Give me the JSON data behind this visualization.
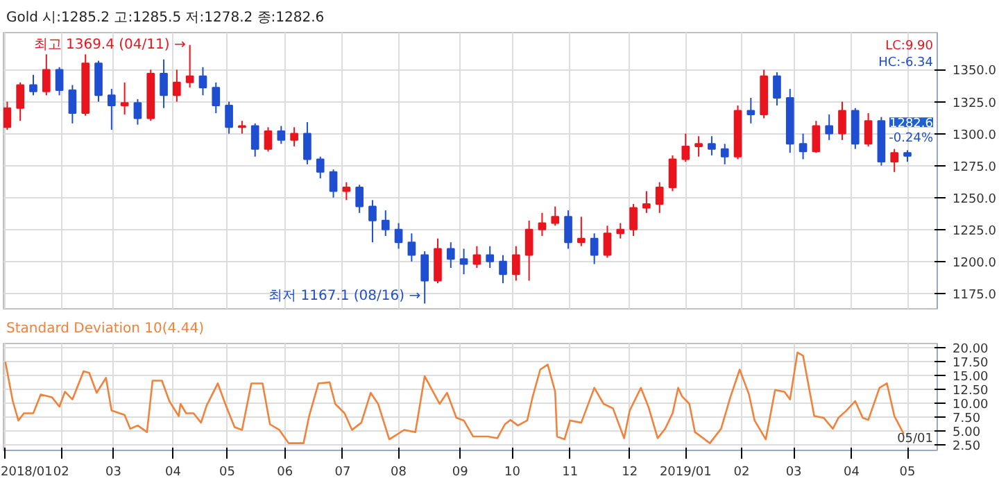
{
  "chart_data": [
    {
      "type": "candlestick",
      "title": "Gold 시:1285.2 고:1285.5 저:1278.2 종:1282.6",
      "x": [
        "2018-01-03",
        "2018-01-10",
        "2018-01-17",
        "2018-01-24",
        "2018-01-31",
        "2018-02-07",
        "2018-02-14",
        "2018-02-21",
        "2018-02-28",
        "2018-03-07",
        "2018-03-14",
        "2018-03-21",
        "2018-03-28",
        "2018-04-04",
        "2018-04-11",
        "2018-04-18",
        "2018-04-25",
        "2018-05-02",
        "2018-05-09",
        "2018-05-16",
        "2018-05-23",
        "2018-05-30",
        "2018-06-06",
        "2018-06-13",
        "2018-06-20",
        "2018-06-27",
        "2018-07-04",
        "2018-07-11",
        "2018-07-18",
        "2018-07-25",
        "2018-08-01",
        "2018-08-08",
        "2018-08-15",
        "2018-08-22",
        "2018-08-29",
        "2018-09-05",
        "2018-09-12",
        "2018-09-19",
        "2018-09-26",
        "2018-10-03",
        "2018-10-10",
        "2018-10-17",
        "2018-10-24",
        "2018-10-31",
        "2018-11-07",
        "2018-11-14",
        "2018-11-21",
        "2018-11-28",
        "2018-12-05",
        "2018-12-12",
        "2018-12-19",
        "2018-12-26",
        "2019-01-02",
        "2019-01-09",
        "2019-01-16",
        "2019-01-23",
        "2019-01-30",
        "2019-02-06",
        "2019-02-13",
        "2019-02-20",
        "2019-02-27",
        "2019-03-06",
        "2019-03-13",
        "2019-03-20",
        "2019-03-27",
        "2019-04-03",
        "2019-04-10",
        "2019-04-17",
        "2019-04-24",
        "2019-05-01"
      ],
      "ohlc": [
        [
          1305,
          1325,
          1303,
          1320
        ],
        [
          1320,
          1340,
          1310,
          1338
        ],
        [
          1338,
          1346,
          1330,
          1333
        ],
        [
          1333,
          1362,
          1330,
          1350
        ],
        [
          1350,
          1352,
          1330,
          1334
        ],
        [
          1334,
          1338,
          1308,
          1316
        ],
        [
          1316,
          1362,
          1314,
          1355
        ],
        [
          1355,
          1357,
          1325,
          1330
        ],
        [
          1330,
          1335,
          1303,
          1322
        ],
        [
          1322,
          1340,
          1315,
          1324
        ],
        [
          1324,
          1327,
          1307,
          1312
        ],
        [
          1312,
          1350,
          1310,
          1347
        ],
        [
          1347,
          1358,
          1320,
          1330
        ],
        [
          1330,
          1350,
          1325,
          1340
        ],
        [
          1340,
          1369.4,
          1336,
          1345
        ],
        [
          1345,
          1352,
          1330,
          1336
        ],
        [
          1336,
          1340,
          1316,
          1322
        ],
        [
          1322,
          1325,
          1300,
          1305
        ],
        [
          1305,
          1310,
          1300,
          1306
        ],
        [
          1306,
          1308,
          1282,
          1288
        ],
        [
          1288,
          1305,
          1286,
          1302
        ],
        [
          1302,
          1306,
          1292,
          1295
        ],
        [
          1295,
          1305,
          1290,
          1300
        ],
        [
          1300,
          1309,
          1276,
          1280
        ],
        [
          1280,
          1282,
          1265,
          1270
        ],
        [
          1270,
          1272,
          1250,
          1255
        ],
        [
          1255,
          1262,
          1248,
          1258
        ],
        [
          1258,
          1260,
          1238,
          1243
        ],
        [
          1243,
          1248,
          1215,
          1232
        ],
        [
          1232,
          1240,
          1220,
          1225
        ],
        [
          1225,
          1230,
          1210,
          1215
        ],
        [
          1215,
          1222,
          1200,
          1205
        ],
        [
          1205,
          1208,
          1167.1,
          1185
        ],
        [
          1185,
          1218,
          1183,
          1210
        ],
        [
          1210,
          1215,
          1195,
          1202
        ],
        [
          1202,
          1210,
          1190,
          1198
        ],
        [
          1198,
          1212,
          1195,
          1205
        ],
        [
          1205,
          1212,
          1195,
          1200
        ],
        [
          1200,
          1205,
          1183,
          1190
        ],
        [
          1190,
          1212,
          1185,
          1205
        ],
        [
          1205,
          1232,
          1185,
          1225
        ],
        [
          1225,
          1238,
          1220,
          1230
        ],
        [
          1230,
          1243,
          1228,
          1235
        ],
        [
          1235,
          1240,
          1210,
          1215
        ],
        [
          1215,
          1235,
          1212,
          1218
        ],
        [
          1218,
          1222,
          1198,
          1205
        ],
        [
          1205,
          1228,
          1203,
          1222
        ],
        [
          1222,
          1230,
          1218,
          1225
        ],
        [
          1225,
          1245,
          1220,
          1242
        ],
        [
          1242,
          1255,
          1238,
          1245
        ],
        [
          1245,
          1262,
          1238,
          1258
        ],
        [
          1258,
          1283,
          1255,
          1280
        ],
        [
          1280,
          1300,
          1278,
          1290
        ],
        [
          1290,
          1298,
          1282,
          1292
        ],
        [
          1292,
          1298,
          1283,
          1288
        ],
        [
          1288,
          1292,
          1276,
          1282
        ],
        [
          1282,
          1322,
          1280,
          1318
        ],
        [
          1318,
          1328,
          1308,
          1315
        ],
        [
          1315,
          1350,
          1312,
          1345
        ],
        [
          1345,
          1348,
          1322,
          1328
        ],
        [
          1328,
          1335,
          1285,
          1292
        ],
        [
          1292,
          1300,
          1280,
          1286
        ],
        [
          1286,
          1310,
          1285,
          1306
        ],
        [
          1306,
          1315,
          1295,
          1300
        ],
        [
          1300,
          1325,
          1295,
          1318
        ],
        [
          1318,
          1320,
          1288,
          1292
        ],
        [
          1292,
          1316,
          1290,
          1310
        ],
        [
          1310,
          1313,
          1275,
          1278
        ],
        [
          1278,
          1288,
          1270,
          1285
        ],
        [
          1285,
          1287,
          1278,
          1282.6
        ]
      ],
      "xlim": [
        "2018-01-01",
        "2019-05-17"
      ],
      "xticks": [
        {
          "value": "2018-01-02",
          "label": null
        },
        {
          "value": "2018-02-01",
          "label": null
        },
        {
          "value": "2018-03-01",
          "label": null
        },
        {
          "value": "2018-04-02",
          "label": null
        },
        {
          "value": "2018-05-01",
          "label": null
        },
        {
          "value": "2018-06-01",
          "label": null
        },
        {
          "value": "2018-07-02",
          "label": null
        },
        {
          "value": "2018-08-01",
          "label": null
        },
        {
          "value": "2018-09-03",
          "label": null
        },
        {
          "value": "2018-10-01",
          "label": null
        },
        {
          "value": "2018-11-01",
          "label": null
        },
        {
          "value": "2018-12-03",
          "label": null
        },
        {
          "value": "2019-01-02",
          "label": null
        },
        {
          "value": "2019-02-01",
          "label": null
        },
        {
          "value": "2019-03-01",
          "label": null
        },
        {
          "value": "2019-04-01",
          "label": null
        },
        {
          "value": "2019-05-01",
          "label": null
        }
      ],
      "ylim": [
        1163,
        1379
      ],
      "yticks": [
        {
          "value": 1175,
          "label": "1175.0"
        },
        {
          "value": 1200,
          "label": "1200.0"
        },
        {
          "value": 1225,
          "label": "1225.0"
        },
        {
          "value": 1250,
          "label": "1250.0"
        },
        {
          "value": 1275,
          "label": "1275.0"
        },
        {
          "value": 1300,
          "label": "1300.0"
        },
        {
          "value": 1325,
          "label": "1325.0"
        },
        {
          "value": 1350,
          "label": "1350.0"
        }
      ],
      "tick_labels": "y",
      "grid": true,
      "annotations": [
        "LC:9.90",
        "HC:-6.34",
        "1282.6",
        "-0.24%",
        {
          "text": "최고 1369.4 (04/11) →",
          "x": "2018-04-11",
          "y": 1369.4
        },
        {
          "text": "최저 1167.1 (08/16) →",
          "x": "2018-08-15",
          "y": 1167.1
        }
      ]
    },
    {
      "type": "line",
      "title": "Standard Deviation 10(4.44)",
      "series": [
        {
          "color": "#f0823c",
          "x": [
            "2018-01-02",
            "2018-01-06",
            "2018-01-09",
            "2018-01-12",
            "2018-01-17",
            "2018-01-21",
            "2018-01-27",
            "2018-01-31",
            "2018-02-03",
            "2018-02-07",
            "2018-02-13",
            "2018-02-16",
            "2018-02-20",
            "2018-02-25",
            "2018-02-28",
            "2018-03-07",
            "2018-03-10",
            "2018-03-14",
            "2018-03-19",
            "2018-03-22",
            "2018-03-27",
            "2018-03-31",
            "2018-04-05",
            "2018-04-06",
            "2018-04-09",
            "2018-04-13",
            "2018-04-17",
            "2018-04-20",
            "2018-04-26",
            "2018-04-30",
            "2018-05-05",
            "2018-05-09",
            "2018-05-14",
            "2018-05-20",
            "2018-05-24",
            "2018-05-29",
            "2018-06-03",
            "2018-06-11",
            "2018-06-14",
            "2018-06-19",
            "2018-06-25",
            "2018-06-28",
            "2018-07-03",
            "2018-07-07",
            "2018-07-12",
            "2018-07-17",
            "2018-07-21",
            "2018-07-27",
            "2018-08-04",
            "2018-08-10",
            "2018-08-15",
            "2018-08-23",
            "2018-08-27",
            "2018-09-01",
            "2018-09-05",
            "2018-09-10",
            "2018-09-18",
            "2018-09-23",
            "2018-09-27",
            "2018-09-30",
            "2018-10-04",
            "2018-10-09",
            "2018-10-12",
            "2018-10-16",
            "2018-10-20",
            "2018-10-24",
            "2018-10-25",
            "2018-10-29",
            "2018-11-01",
            "2018-11-07",
            "2018-11-14",
            "2018-11-19",
            "2018-11-24",
            "2018-11-30",
            "2018-12-03",
            "2018-12-09",
            "2018-12-13",
            "2018-12-18",
            "2018-12-22",
            "2018-12-26",
            "2018-12-29",
            "2018-12-31",
            "2019-01-04",
            "2019-01-07",
            "2019-01-15",
            "2019-01-21",
            "2019-01-26",
            "2019-01-31",
            "2019-02-05",
            "2019-02-08",
            "2019-02-14",
            "2019-02-19",
            "2019-02-24",
            "2019-02-27",
            "2019-03-03",
            "2019-03-06",
            "2019-03-12",
            "2019-03-17",
            "2019-03-22",
            "2019-03-25",
            "2019-03-29",
            "2019-04-03",
            "2019-04-07",
            "2019-04-10",
            "2019-04-16",
            "2019-04-20",
            "2019-04-24",
            "2019-04-29"
          ],
          "values": [
            17.5,
            10.4,
            6.9,
            8.2,
            8.2,
            11.6,
            11.1,
            9.4,
            12.1,
            10.7,
            15.8,
            15.5,
            11.9,
            14.6,
            8.7,
            7.9,
            5.4,
            6.0,
            4.8,
            14.1,
            14.1,
            10.4,
            7.7,
            9.9,
            8.2,
            8.2,
            6.5,
            9.6,
            13.6,
            9.9,
            5.7,
            5.2,
            13.6,
            13.6,
            6.2,
            5.2,
            2.8,
            2.8,
            7.7,
            13.6,
            13.8,
            9.9,
            8.2,
            5.2,
            6.5,
            11.9,
            9.9,
            3.5,
            5.2,
            4.8,
            14.9,
            9.9,
            11.9,
            7.4,
            6.9,
            4.0,
            4.0,
            3.7,
            6.2,
            7.0,
            6.0,
            6.9,
            11.3,
            16.1,
            17.0,
            12.1,
            4.0,
            3.5,
            6.9,
            6.5,
            12.8,
            9.9,
            9.1,
            3.7,
            8.7,
            12.8,
            9.4,
            3.7,
            5.4,
            8.2,
            12.8,
            11.3,
            9.9,
            4.8,
            2.8,
            5.4,
            11.1,
            16.1,
            11.6,
            6.9,
            3.5,
            12.4,
            12.1,
            10.7,
            19.2,
            18.6,
            7.7,
            7.4,
            5.4,
            7.4,
            8.6,
            10.4,
            7.4,
            7.0,
            12.8,
            13.6,
            7.7,
            4.5
          ]
        }
      ],
      "xlim": [
        "2018-01-01",
        "2019-05-17"
      ],
      "xticks": [
        {
          "value": "2018-01-02",
          "label": "2018/01"
        },
        {
          "value": "2018-02-01",
          "label": "02"
        },
        {
          "value": "2018-03-01",
          "label": "03"
        },
        {
          "value": "2018-04-02",
          "label": "04"
        },
        {
          "value": "2018-05-01",
          "label": "05"
        },
        {
          "value": "2018-06-01",
          "label": "06"
        },
        {
          "value": "2018-07-02",
          "label": "07"
        },
        {
          "value": "2018-08-01",
          "label": "08"
        },
        {
          "value": "2018-09-03",
          "label": "09"
        },
        {
          "value": "2018-10-01",
          "label": "10"
        },
        {
          "value": "2018-11-01",
          "label": "11"
        },
        {
          "value": "2018-12-03",
          "label": "12"
        },
        {
          "value": "2019-01-02",
          "label": "2019/01"
        },
        {
          "value": "2019-02-01",
          "label": "02"
        },
        {
          "value": "2019-03-01",
          "label": "03"
        },
        {
          "value": "2019-04-01",
          "label": "04"
        },
        {
          "value": "2019-05-01",
          "label": "05"
        }
      ],
      "ylim": [
        1.5,
        20.8
      ],
      "yticks": [
        {
          "value": 2.5,
          "label": "2.50"
        },
        {
          "value": 5,
          "label": "5.00"
        },
        {
          "value": 7.5,
          "label": "7.50"
        },
        {
          "value": 10,
          "label": "10.00"
        },
        {
          "value": 12.5,
          "label": "12.50"
        },
        {
          "value": 15,
          "label": "15.00"
        },
        {
          "value": 17.5,
          "label": "17.50"
        },
        {
          "value": 20,
          "label": "20.00"
        }
      ],
      "grid": true,
      "marker": "none",
      "line_style": "solid",
      "annotations": [
        "05/01"
      ]
    }
  ]
}
